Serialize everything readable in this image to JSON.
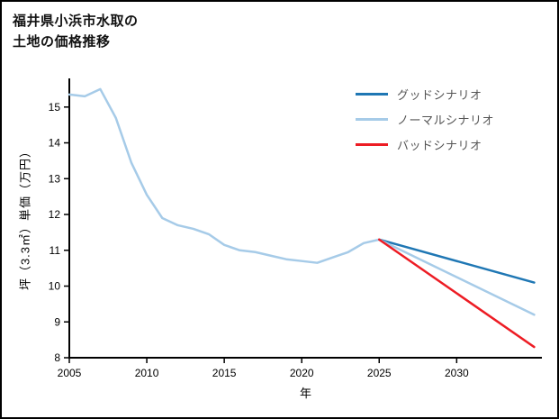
{
  "page": {
    "background": "#ffffff",
    "border_color": "#000000"
  },
  "title": {
    "lines": [
      "福井県小浜市水取の",
      "土地の価格推移"
    ]
  },
  "chart_data": {
    "type": "line",
    "title": "福井県小浜市水取の土地の価格推移",
    "xlabel": "年",
    "ylabel": "坪（3.3㎡）単価（万円）",
    "xlim": [
      2005,
      2035.5
    ],
    "ylim": [
      8,
      15.8
    ],
    "xticks": [
      2005,
      2010,
      2015,
      2020,
      2025,
      2030
    ],
    "yticks": [
      8,
      9,
      10,
      11,
      12,
      13,
      14,
      15
    ],
    "axis_color": "#000000",
    "tick_label_color": "#000000",
    "grid": false,
    "legend_position": "top-right",
    "series": [
      {
        "name": "グッドシナリオ",
        "color": "#1f77b4",
        "x": [
          2025,
          2035
        ],
        "y": [
          11.3,
          10.1
        ]
      },
      {
        "name": "ノーマルシナリオ",
        "color": "#a6cbe8",
        "x": [
          2005,
          2006,
          2007,
          2008,
          2009,
          2010,
          2011,
          2012,
          2013,
          2014,
          2015,
          2016,
          2017,
          2018,
          2019,
          2020,
          2021,
          2022,
          2023,
          2024,
          2025,
          2035
        ],
        "y": [
          15.35,
          15.3,
          15.5,
          14.7,
          13.45,
          12.55,
          11.9,
          11.7,
          11.6,
          11.45,
          11.15,
          11.0,
          10.95,
          10.85,
          10.75,
          10.7,
          10.65,
          10.8,
          10.95,
          11.2,
          11.3,
          9.2
        ]
      },
      {
        "name": "バッドシナリオ",
        "color": "#ed1c24",
        "x": [
          2025,
          2035
        ],
        "y": [
          11.3,
          8.3
        ]
      }
    ]
  }
}
